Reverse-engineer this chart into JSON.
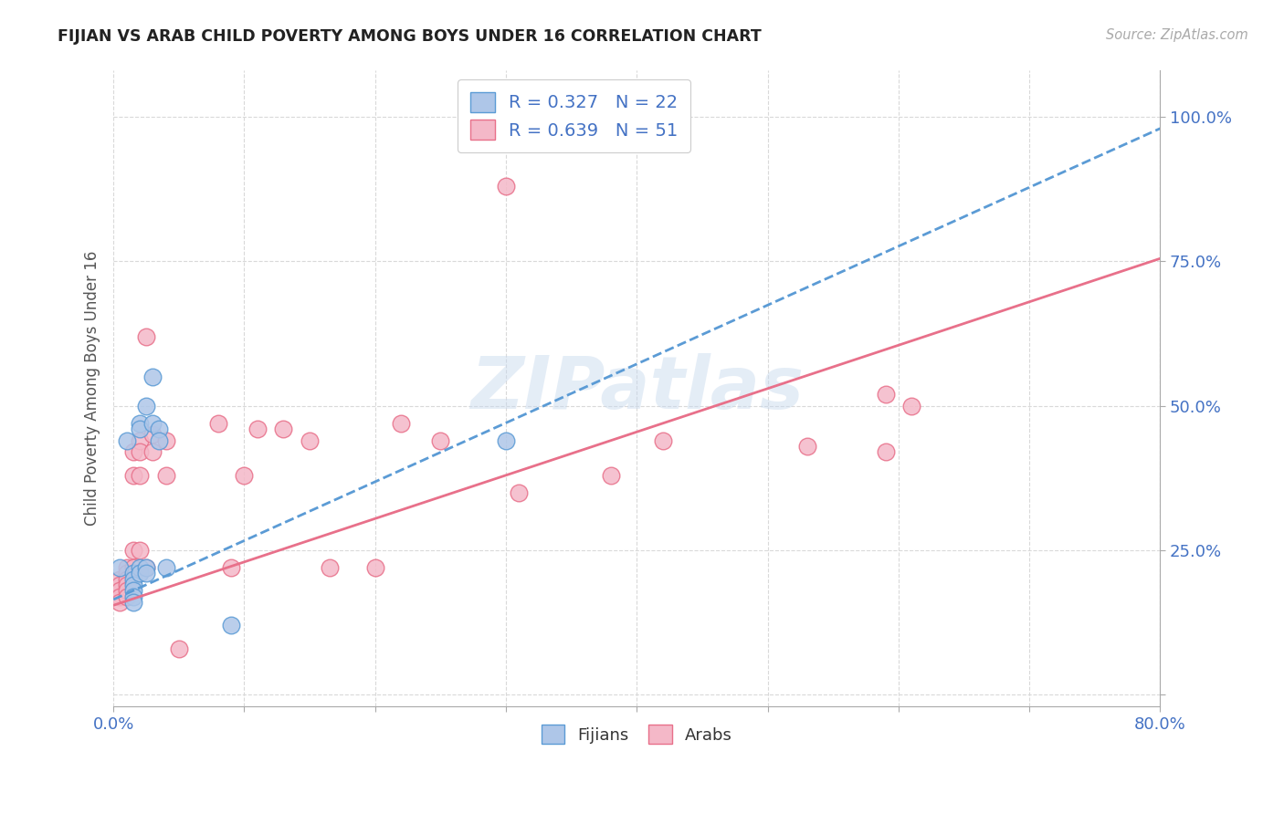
{
  "title": "FIJIAN VS ARAB CHILD POVERTY AMONG BOYS UNDER 16 CORRELATION CHART",
  "source": "Source: ZipAtlas.com",
  "ylabel": "Child Poverty Among Boys Under 16",
  "ytick_values": [
    0.0,
    0.25,
    0.5,
    0.75,
    1.0
  ],
  "ytick_labels": [
    "",
    "25.0%",
    "50.0%",
    "75.0%",
    "100.0%"
  ],
  "xlim": [
    0.0,
    0.8
  ],
  "ylim": [
    -0.02,
    1.08
  ],
  "watermark": "ZIPatlas",
  "fijian_color_face": "#aec6e8",
  "fijian_color_edge": "#5b9bd5",
  "arab_color_face": "#f4b8c8",
  "arab_color_edge": "#e8708a",
  "fijian_line_color": "#5b9bd5",
  "arab_line_color": "#e8708a",
  "grid_color": "#d9d9d9",
  "bg_color": "#ffffff",
  "legend_fijian_face": "#aec6e8",
  "legend_fijian_edge": "#5b9bd5",
  "legend_arab_face": "#f4b8c8",
  "legend_arab_edge": "#e8708a",
  "fijian_scatter": [
    [
      0.005,
      0.22
    ],
    [
      0.01,
      0.44
    ],
    [
      0.015,
      0.21
    ],
    [
      0.015,
      0.2
    ],
    [
      0.015,
      0.19
    ],
    [
      0.015,
      0.18
    ],
    [
      0.015,
      0.17
    ],
    [
      0.015,
      0.16
    ],
    [
      0.02,
      0.47
    ],
    [
      0.02,
      0.46
    ],
    [
      0.02,
      0.22
    ],
    [
      0.02,
      0.21
    ],
    [
      0.025,
      0.5
    ],
    [
      0.025,
      0.22
    ],
    [
      0.025,
      0.21
    ],
    [
      0.03,
      0.55
    ],
    [
      0.03,
      0.47
    ],
    [
      0.035,
      0.46
    ],
    [
      0.035,
      0.44
    ],
    [
      0.04,
      0.22
    ],
    [
      0.09,
      0.12
    ],
    [
      0.3,
      0.44
    ]
  ],
  "arab_scatter": [
    [
      0.005,
      0.2
    ],
    [
      0.005,
      0.19
    ],
    [
      0.005,
      0.18
    ],
    [
      0.005,
      0.17
    ],
    [
      0.005,
      0.16
    ],
    [
      0.01,
      0.22
    ],
    [
      0.01,
      0.21
    ],
    [
      0.01,
      0.2
    ],
    [
      0.01,
      0.19
    ],
    [
      0.01,
      0.18
    ],
    [
      0.01,
      0.17
    ],
    [
      0.015,
      0.42
    ],
    [
      0.015,
      0.38
    ],
    [
      0.015,
      0.25
    ],
    [
      0.015,
      0.22
    ],
    [
      0.02,
      0.44
    ],
    [
      0.02,
      0.42
    ],
    [
      0.02,
      0.38
    ],
    [
      0.02,
      0.25
    ],
    [
      0.025,
      0.62
    ],
    [
      0.025,
      0.22
    ],
    [
      0.03,
      0.45
    ],
    [
      0.03,
      0.42
    ],
    [
      0.04,
      0.44
    ],
    [
      0.04,
      0.38
    ],
    [
      0.05,
      0.08
    ],
    [
      0.08,
      0.47
    ],
    [
      0.09,
      0.22
    ],
    [
      0.1,
      0.38
    ],
    [
      0.11,
      0.46
    ],
    [
      0.13,
      0.46
    ],
    [
      0.15,
      0.44
    ],
    [
      0.165,
      0.22
    ],
    [
      0.2,
      0.22
    ],
    [
      0.22,
      0.47
    ],
    [
      0.25,
      0.44
    ],
    [
      0.3,
      0.88
    ],
    [
      0.31,
      0.35
    ],
    [
      0.38,
      0.38
    ],
    [
      0.42,
      0.44
    ],
    [
      0.53,
      0.43
    ],
    [
      0.59,
      0.52
    ],
    [
      0.59,
      0.42
    ],
    [
      0.61,
      0.5
    ]
  ],
  "fijian_line_x": [
    0.0,
    0.8
  ],
  "fijian_line_y": [
    0.165,
    0.98
  ],
  "arab_line_x": [
    0.0,
    0.8
  ],
  "arab_line_y": [
    0.155,
    0.755
  ]
}
